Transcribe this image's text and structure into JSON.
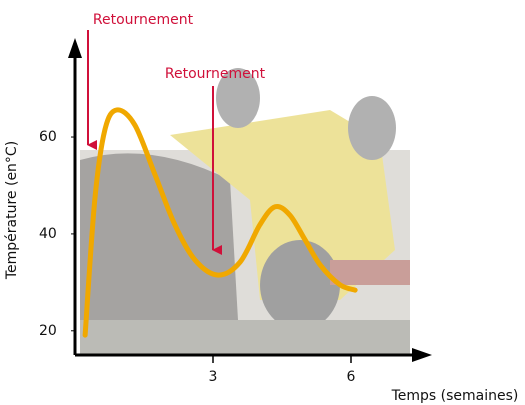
{
  "chart_data": {
    "type": "line",
    "y_label": "Température (en°C)",
    "x_label": "Temps (semaines)",
    "annotations": [
      "Retournement",
      "Retournement"
    ],
    "x": [
      0.22,
      0.43,
      0.65,
      0.91,
      1.3,
      1.74,
      2.17,
      2.61,
      3.11,
      3.59,
      4.02,
      4.35,
      4.67,
      5.0,
      5.33,
      5.76,
      6.09
    ],
    "series": [
      {
        "color": "#f0a800",
        "values": [
          19.1,
          47.0,
          61.5,
          65.6,
          62.5,
          52.2,
          41.9,
          34.6,
          31.5,
          34.2,
          41.9,
          45.6,
          43.9,
          38.8,
          33.6,
          29.5,
          28.4
        ]
      }
    ],
    "xlim": [
      0,
      7.7
    ],
    "xticks": [
      3,
      6
    ],
    "ylim": [
      15,
      79
    ],
    "yticks": [
      20,
      40,
      60
    ]
  }
}
